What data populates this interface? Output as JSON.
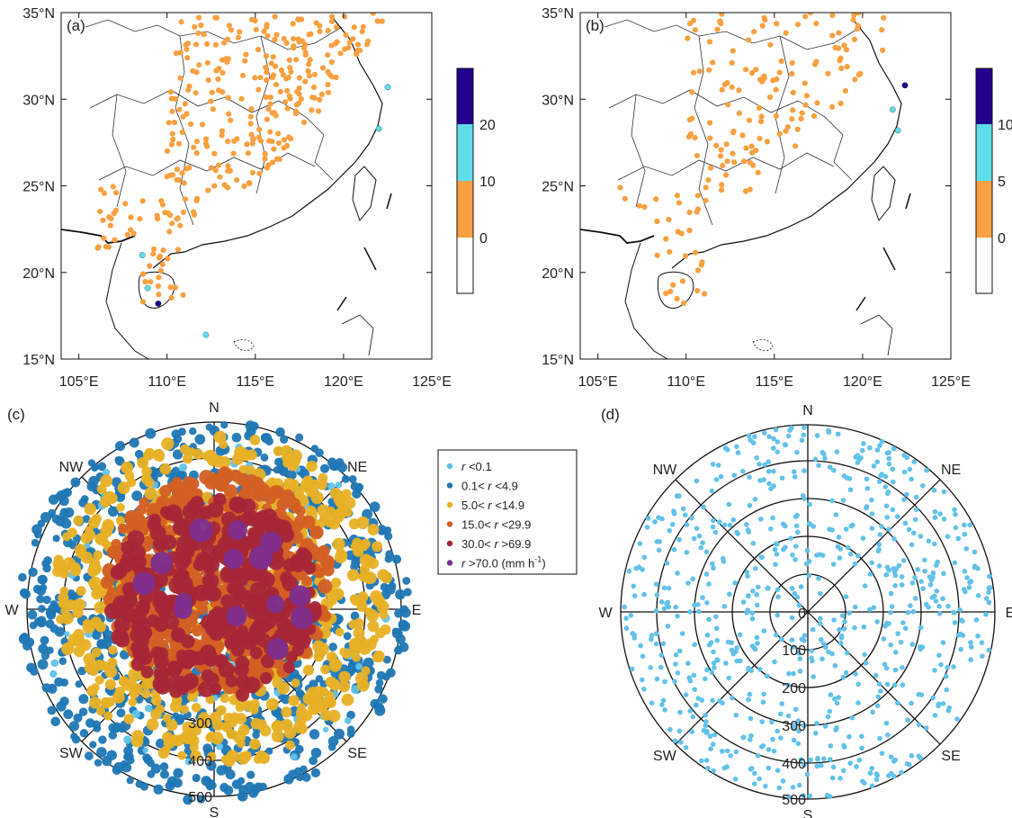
{
  "panels": {
    "a": {
      "label": "(a)"
    },
    "b": {
      "label": "(b)"
    },
    "c": {
      "label": "(c)"
    },
    "d": {
      "label": "(d)"
    }
  },
  "map_axes": {
    "lat_labels": [
      "35°N",
      "30°N",
      "25°N",
      "20°N",
      "15°N"
    ],
    "lon_labels": [
      "105°E",
      "110°E",
      "115°E",
      "120°E",
      "125°E"
    ]
  },
  "colorbar_a": {
    "ticks": [
      "20",
      "10",
      "0"
    ],
    "colors": [
      "#23008e",
      "#5fdde8",
      "#f9a040",
      "#ffffff"
    ]
  },
  "colorbar_b": {
    "ticks": [
      "10",
      "5",
      "0"
    ],
    "colors": [
      "#23008e",
      "#5fdde8",
      "#f9a040",
      "#ffffff"
    ]
  },
  "polar": {
    "directions": [
      "N",
      "NE",
      "E",
      "SE",
      "S",
      "SW",
      "W",
      "NW"
    ],
    "range_labels": [
      "0",
      "100",
      "200",
      "300",
      "400",
      "500"
    ],
    "range_labels_c": [
      "300",
      "400",
      "500"
    ]
  },
  "legend": {
    "items": [
      {
        "pre": "",
        "r": "r",
        "post": " <0.1",
        "color": "#62c2ea"
      },
      {
        "pre": "0.1< ",
        "r": "r",
        "post": " <4.9",
        "color": "#1f77b4"
      },
      {
        "pre": "5.0< ",
        "r": "r",
        "post": " <14.9",
        "color": "#e8b125"
      },
      {
        "pre": "15.0< ",
        "r": "r",
        "post": " <29.9",
        "color": "#d35f23"
      },
      {
        "pre": "30.0< ",
        "r": "r",
        "post": " >69.9",
        "color": "#a52638"
      },
      {
        "pre": "",
        "r": "r",
        "post": " >70.0 (mm h",
        "sup": "-1",
        "close": ")",
        "color": "#7d2e8e"
      }
    ]
  },
  "chart_data": [
    {
      "type": "scatter",
      "panel": "a",
      "x_range": [
        104,
        125
      ],
      "y_range": [
        15,
        35
      ],
      "colorbar_ticks": [
        0,
        10,
        20
      ],
      "point_color": "#f9a040"
    },
    {
      "type": "scatter",
      "panel": "b",
      "x_range": [
        104,
        125
      ],
      "y_range": [
        15,
        35
      ],
      "colorbar_ticks": [
        0,
        5,
        10
      ],
      "point_color": "#f9a040"
    },
    {
      "type": "scatter",
      "panel": "c",
      "projection": "polar",
      "r_range": [
        0,
        500
      ],
      "classes": [
        "r<0.1",
        "0.1<r<4.9",
        "5.0<r<14.9",
        "15.0<r<29.9",
        "30.0<r>69.9",
        "r>70.0 (mm h-1)"
      ]
    },
    {
      "type": "scatter",
      "panel": "d",
      "projection": "polar",
      "r_range": [
        0,
        500
      ],
      "point_color": "#62c2ea"
    }
  ]
}
